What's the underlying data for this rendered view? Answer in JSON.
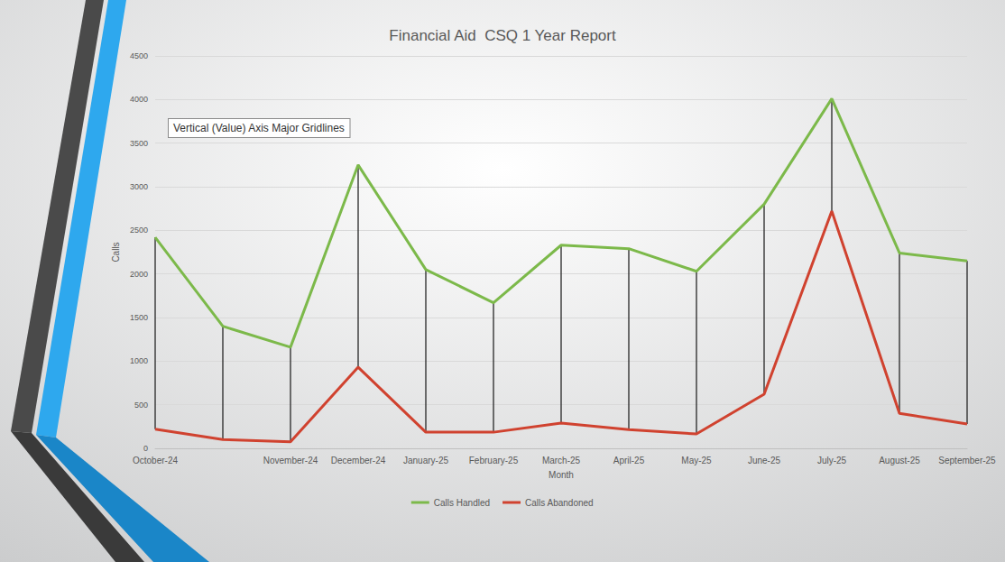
{
  "chart_data": {
    "type": "line",
    "title": "Financial Aid  CSQ 1 Year Report",
    "x_label": "Month",
    "y_label": "Calls",
    "categories": [
      "October-24",
      null,
      "November-24",
      "December-24",
      "January-25",
      "February-25",
      "March-25",
      "April-25",
      "May-25",
      "June-25",
      "July-25",
      "August-25",
      "September-25"
    ],
    "series": [
      {
        "name": "Calls Handled",
        "color": "#7cb94a",
        "values": [
          2420,
          1400,
          1160,
          3250,
          2050,
          1670,
          2330,
          2290,
          2030,
          2800,
          4010,
          2240,
          2150
        ]
      },
      {
        "name": "Calls Abandoned",
        "color": "#d0422f",
        "values": [
          220,
          100,
          75,
          930,
          185,
          185,
          290,
          215,
          165,
          620,
          2720,
          400,
          280
        ]
      }
    ],
    "ylim": [
      0,
      4500
    ],
    "yticks": [
      0,
      500,
      1000,
      1500,
      2000,
      2500,
      3000,
      3500,
      4000,
      4500
    ],
    "grid": true,
    "legend": "bottom",
    "marker": "none",
    "annotations": [
      "Vertical (Value) Axis Major Gridlines"
    ]
  }
}
